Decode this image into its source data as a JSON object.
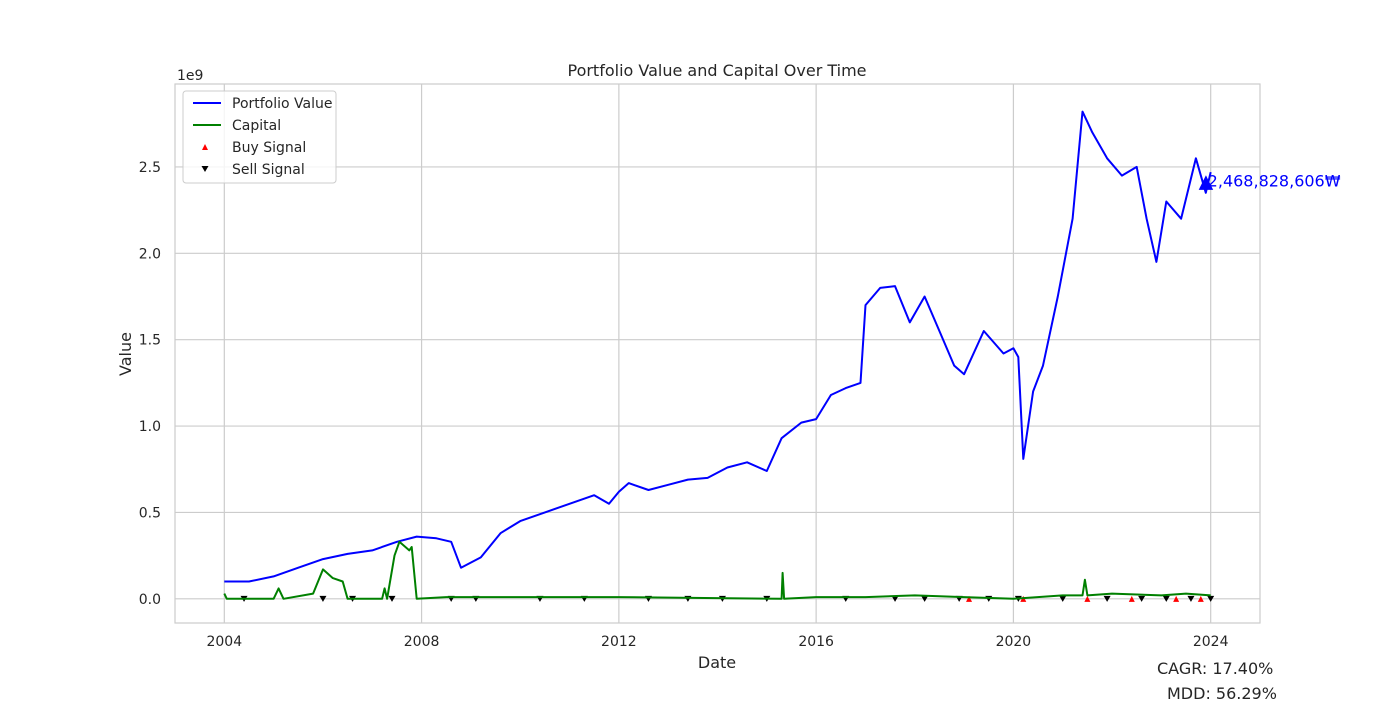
{
  "chart_data": {
    "type": "line",
    "title": "Portfolio Value and Capital Over Time",
    "xlabel": "Date",
    "ylabel": "Value",
    "y_offset_label": "1e9",
    "x_ticks": [
      "2004",
      "2008",
      "2012",
      "2016",
      "2020",
      "2024"
    ],
    "y_ticks": [
      "0.0",
      "0.5",
      "1.0",
      "1.5",
      "2.0",
      "2.5"
    ],
    "xlim": [
      2003.0,
      2025.0
    ],
    "ylim": [
      -0.14,
      2.98
    ],
    "grid": true,
    "legend_position": "top-left",
    "series": [
      {
        "name": "Portfolio Value",
        "color": "#0000ff",
        "x": [
          2004.0,
          2004.5,
          2005.0,
          2005.5,
          2006.0,
          2006.5,
          2007.0,
          2007.5,
          2007.9,
          2008.3,
          2008.6,
          2008.8,
          2009.2,
          2009.6,
          2010.0,
          2010.5,
          2011.0,
          2011.5,
          2011.8,
          2012.0,
          2012.2,
          2012.6,
          2013.0,
          2013.4,
          2013.8,
          2014.2,
          2014.6,
          2015.0,
          2015.3,
          2015.7,
          2016.0,
          2016.3,
          2016.6,
          2016.9,
          2017.0,
          2017.3,
          2017.6,
          2017.9,
          2018.2,
          2018.5,
          2018.8,
          2019.0,
          2019.4,
          2019.8,
          2020.0,
          2020.1,
          2020.2,
          2020.4,
          2020.6,
          2020.9,
          2021.2,
          2021.4,
          2021.6,
          2021.9,
          2022.2,
          2022.5,
          2022.7,
          2022.9,
          2023.1,
          2023.4,
          2023.7,
          2023.9,
          2024.0
        ],
        "values": [
          0.1,
          0.1,
          0.13,
          0.18,
          0.23,
          0.26,
          0.28,
          0.33,
          0.36,
          0.35,
          0.33,
          0.18,
          0.24,
          0.38,
          0.45,
          0.5,
          0.55,
          0.6,
          0.55,
          0.62,
          0.67,
          0.63,
          0.66,
          0.69,
          0.7,
          0.76,
          0.79,
          0.74,
          0.93,
          1.02,
          1.04,
          1.18,
          1.22,
          1.25,
          1.7,
          1.8,
          1.81,
          1.6,
          1.75,
          1.55,
          1.35,
          1.3,
          1.55,
          1.42,
          1.45,
          1.4,
          0.81,
          1.2,
          1.35,
          1.75,
          2.2,
          2.82,
          2.7,
          2.55,
          2.45,
          2.5,
          2.2,
          1.95,
          2.3,
          2.2,
          2.55,
          2.35,
          2.47
        ]
      },
      {
        "name": "Capital",
        "color": "#008000",
        "x": [
          2004.0,
          2004.05,
          2005.0,
          2005.1,
          2005.2,
          2005.8,
          2006.0,
          2006.2,
          2006.4,
          2006.5,
          2007.2,
          2007.25,
          2007.3,
          2007.45,
          2007.55,
          2007.75,
          2007.8,
          2007.9,
          2008.5,
          2012.0,
          2015.3,
          2015.32,
          2015.35,
          2016.0,
          2017.0,
          2018.0,
          2019.0,
          2020.0,
          2021.0,
          2021.4,
          2021.45,
          2021.5,
          2022.0,
          2023.0,
          2023.5,
          2024.0
        ],
        "values": [
          0.03,
          0.0,
          0.0,
          0.06,
          0.0,
          0.03,
          0.17,
          0.12,
          0.1,
          0.0,
          0.0,
          0.06,
          0.0,
          0.25,
          0.33,
          0.28,
          0.3,
          0.0,
          0.01,
          0.01,
          0.0,
          0.15,
          0.0,
          0.01,
          0.01,
          0.02,
          0.01,
          0.0,
          0.02,
          0.02,
          0.11,
          0.02,
          0.03,
          0.02,
          0.03,
          0.02
        ]
      }
    ],
    "legend": [
      {
        "label": "Portfolio Value",
        "color": "#0000ff",
        "marker": "line"
      },
      {
        "label": "Capital",
        "color": "#008000",
        "marker": "line"
      },
      {
        "label": "Buy Signal",
        "color": "#ff0000",
        "marker": "triangle-up"
      },
      {
        "label": "Sell Signal",
        "color": "#000000",
        "marker": "triangle-down"
      }
    ],
    "sell_signal_x": [
      2004.4,
      2006.0,
      2006.6,
      2007.4,
      2008.6,
      2009.1,
      2010.4,
      2011.3,
      2012.6,
      2013.4,
      2014.1,
      2015.0,
      2016.6,
      2017.6,
      2018.2,
      2018.9,
      2019.5,
      2020.1,
      2021.0,
      2021.9,
      2022.6,
      2023.1,
      2023.6,
      2024.0
    ],
    "buy_signal_x": [
      2019.1,
      2020.2,
      2021.5,
      2022.4,
      2023.3,
      2023.8
    ],
    "final_annotation": {
      "x": 2024.0,
      "y": 2.42,
      "text": "2,468,828,606₩",
      "marker": "▲"
    },
    "stats": {
      "cagr": "CAGR: 17.40%",
      "mdd": "MDD: 56.29%"
    }
  }
}
